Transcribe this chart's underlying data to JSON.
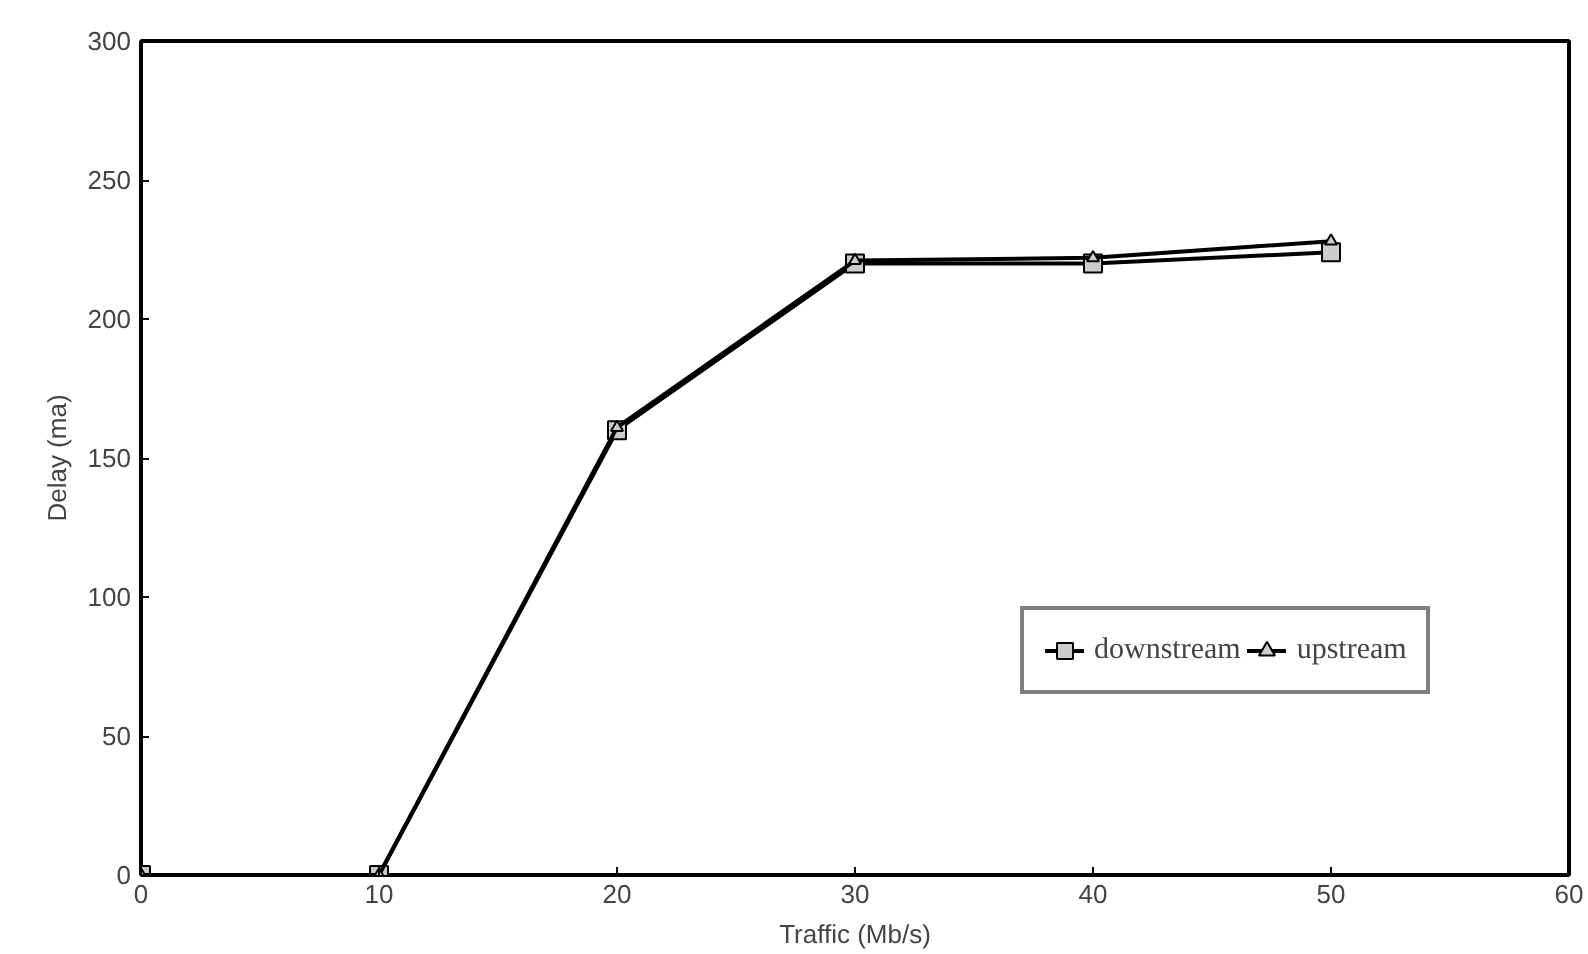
{
  "chart_data": {
    "type": "line",
    "xlabel": "Traffic (Mb/s)",
    "ylabel": "Delay (ma)",
    "x": [
      0,
      10,
      20,
      30,
      40,
      50
    ],
    "series": [
      {
        "name": "downstream",
        "color": "#000000",
        "marker": "square",
        "values": [
          0,
          0,
          160,
          220,
          220,
          224
        ]
      },
      {
        "name": "upstream",
        "color": "#000000",
        "marker": "triangle",
        "values": [
          0,
          0,
          161,
          221,
          222,
          228
        ]
      }
    ],
    "xlim": [
      0,
      60
    ],
    "xticks": [
      0,
      10,
      20,
      30,
      40,
      50,
      60
    ],
    "ylim": [
      0,
      300
    ],
    "yticks": [
      0,
      50,
      100,
      150,
      200,
      250,
      300
    ],
    "grid": false,
    "legend": "bottom right",
    "line_style": "solid"
  }
}
